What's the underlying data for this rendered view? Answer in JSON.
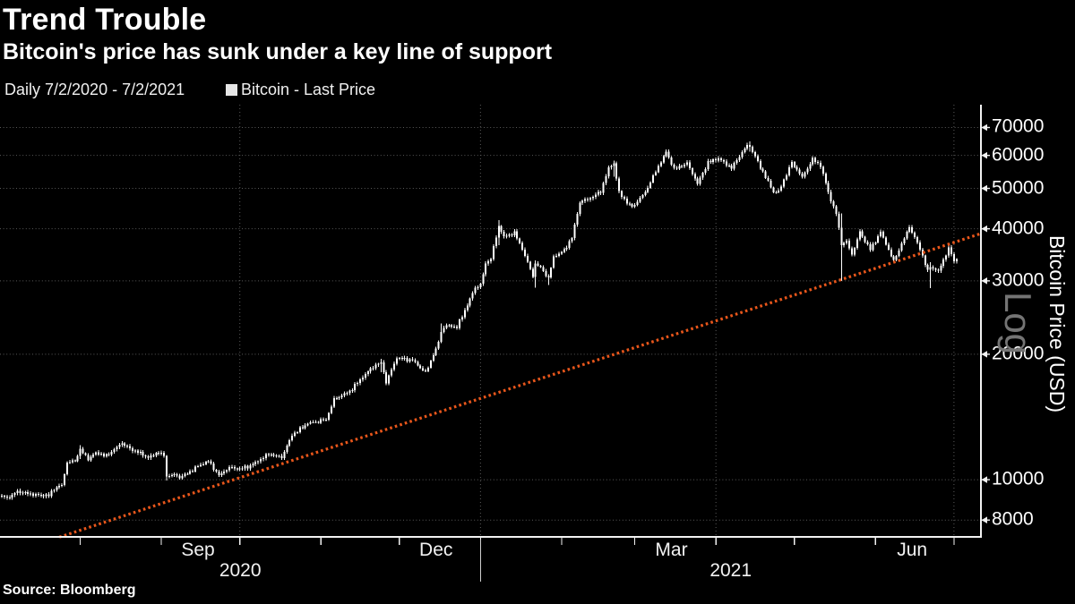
{
  "header": {
    "title": "Trend Trouble",
    "subtitle": "Bitcoin's price has sunk under a key line of support"
  },
  "legend": {
    "period": "Daily 7/2/2020 - 7/2/2021",
    "marker": "square-swatch",
    "marker_color": "#e5e5e5",
    "series_label": "Bitcoin - Last Price"
  },
  "source_line": "Source: Bloomberg",
  "colors": {
    "background": "#000000",
    "bars": "#ffffff",
    "axis": "#f2f2f2",
    "grid": "#5a5a5a",
    "support_line": "#e8561b",
    "log_badge": "#747474"
  },
  "chart_data": {
    "type": "candlestick",
    "title": "Trend Trouble",
    "subtitle": "Bitcoin's price has sunk under a key line of support",
    "series_name": "Bitcoin - Last Price",
    "x_axis": {
      "start_date": "7/2/2020",
      "end_date": "7/2/2021",
      "days_total": 365,
      "month_tick_days": [
        30,
        61,
        91,
        122,
        152,
        183,
        214,
        242,
        273,
        303,
        334,
        364
      ],
      "month_labels": [
        {
          "label": "Sep",
          "day": 75
        },
        {
          "label": "Dec",
          "day": 166
        },
        {
          "label": "Mar",
          "day": 256
        },
        {
          "label": "Jun",
          "day": 348
        }
      ],
      "year_labels": [
        {
          "label": "2020"
        },
        {
          "label": "2021"
        }
      ],
      "year_separator_day": 183,
      "quarter_gridline_days": [
        91,
        183,
        273,
        364
      ],
      "grid": true
    },
    "y_axis": {
      "label": "Bitcoin Price (USD)",
      "scale": "log",
      "scale_label": "Log",
      "side": "right",
      "ticks": [
        8000,
        10000,
        20000,
        30000,
        40000,
        50000,
        60000,
        70000
      ],
      "range": [
        7290,
        79400
      ],
      "grid": true
    },
    "support_line": {
      "name": "key support trendline",
      "style": "dotted",
      "color": "#e8561b",
      "start": {
        "day": 22,
        "price": 7280
      },
      "end": {
        "day": 374,
        "price": 38900
      }
    },
    "anchors_day_price_high_low": [
      [
        0,
        9090
      ],
      [
        3,
        9075
      ],
      [
        6,
        9375
      ],
      [
        9,
        9290
      ],
      [
        13,
        9197
      ],
      [
        18,
        9160
      ],
      [
        20,
        9520
      ],
      [
        23,
        9700
      ],
      [
        25,
        10990
      ],
      [
        28,
        11100
      ],
      [
        30,
        11800,
        12100,
        11200
      ],
      [
        33,
        11200
      ],
      [
        36,
        11600
      ],
      [
        40,
        11400
      ],
      [
        46,
        12250
      ],
      [
        49,
        11850
      ],
      [
        52,
        11650
      ],
      [
        56,
        11300
      ],
      [
        60,
        11650
      ],
      [
        62,
        11400
      ],
      [
        63,
        10200,
        11430,
        9960
      ],
      [
        66,
        10280
      ],
      [
        68,
        10130
      ],
      [
        72,
        10440
      ],
      [
        75,
        10780
      ],
      [
        79,
        11080
      ],
      [
        83,
        10230
      ],
      [
        87,
        10700
      ],
      [
        91,
        10620
      ],
      [
        95,
        10790
      ],
      [
        100,
        11300
      ],
      [
        102,
        11530
      ],
      [
        107,
        11320
      ],
      [
        111,
        12800
      ],
      [
        117,
        13650
      ],
      [
        121,
        13800
      ],
      [
        124,
        13950
      ],
      [
        127,
        15590
      ],
      [
        133,
        16290
      ],
      [
        138,
        17650
      ],
      [
        142,
        18680
      ],
      [
        145,
        19100,
        19500,
        18100
      ],
      [
        147,
        17150
      ],
      [
        151,
        19625
      ],
      [
        154,
        19450
      ],
      [
        157,
        19360
      ],
      [
        162,
        18050
      ],
      [
        167,
        21300
      ],
      [
        168,
        22800,
        23700,
        21250
      ],
      [
        170,
        23450
      ],
      [
        174,
        23250
      ],
      [
        176,
        24700
      ],
      [
        178,
        26300
      ],
      [
        181,
        28900
      ],
      [
        183,
        29400
      ],
      [
        185,
        33000
      ],
      [
        187,
        34000
      ],
      [
        190,
        40600,
        41950,
        36500
      ],
      [
        192,
        38250
      ],
      [
        196,
        39150
      ],
      [
        199,
        35800
      ],
      [
        203,
        30800
      ],
      [
        204,
        33000,
        33600,
        28900
      ],
      [
        206,
        32300
      ],
      [
        209,
        30400,
        31000,
        29300
      ],
      [
        211,
        34300
      ],
      [
        215,
        35500
      ],
      [
        218,
        38100
      ],
      [
        221,
        46400
      ],
      [
        225,
        47400
      ],
      [
        229,
        49200
      ],
      [
        232,
        55900
      ],
      [
        234,
        57500,
        58350,
        53300
      ],
      [
        236,
        48800
      ],
      [
        239,
        46300
      ],
      [
        241,
        45100
      ],
      [
        246,
        48900
      ],
      [
        250,
        54900
      ],
      [
        254,
        61200
      ],
      [
        257,
        55600
      ],
      [
        262,
        57500
      ],
      [
        266,
        51300
      ],
      [
        270,
        57800
      ],
      [
        274,
        59000
      ],
      [
        279,
        56000
      ],
      [
        282,
        59800
      ],
      [
        285,
        63500
      ],
      [
        286,
        63100,
        64850,
        61300
      ],
      [
        290,
        56200
      ],
      [
        295,
        49000
      ],
      [
        297,
        49100
      ],
      [
        302,
        57750
      ],
      [
        306,
        53200
      ],
      [
        310,
        58800
      ],
      [
        313,
        56700
      ],
      [
        317,
        46750
      ],
      [
        319,
        43550
      ],
      [
        321,
        36750,
        43500,
        30000
      ],
      [
        323,
        37300
      ],
      [
        325,
        34700
      ],
      [
        328,
        39300
      ],
      [
        332,
        35650
      ],
      [
        336,
        39250
      ],
      [
        341,
        33400
      ],
      [
        347,
        40500
      ],
      [
        351,
        35850
      ],
      [
        354,
        31600
      ],
      [
        355,
        32500,
        33300,
        28800
      ],
      [
        358,
        31600
      ],
      [
        362,
        35900
      ],
      [
        364,
        33550
      ],
      [
        365,
        33800
      ]
    ]
  }
}
